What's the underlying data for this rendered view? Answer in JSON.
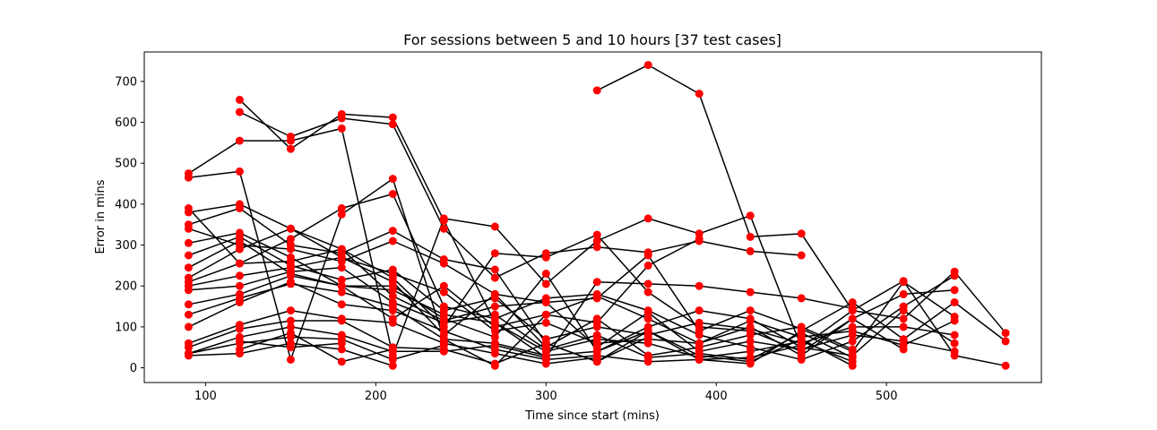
{
  "chart_data": {
    "type": "line",
    "title": "For sessions between 5 and 10 hours [37 test cases]",
    "xlabel": "Time since start (mins)",
    "ylabel": "Error in mins",
    "xlim": [
      64,
      591
    ],
    "ylim": [
      -36,
      772
    ],
    "xticks": [
      100,
      200,
      300,
      400,
      500
    ],
    "yticks": [
      0,
      100,
      200,
      300,
      400,
      500,
      600,
      700
    ],
    "grid": false,
    "line_color": "#000000",
    "marker_color": "#ff0000",
    "series": [
      {
        "x": [
          330,
          360,
          390,
          420,
          450,
          480,
          510,
          540,
          570
        ],
        "y": [
          678,
          740,
          670,
          320,
          328,
          140,
          212,
          30,
          5
        ]
      },
      {
        "x": [
          90,
          120,
          150,
          180,
          210,
          240,
          270,
          300,
          330,
          360,
          390,
          420,
          450,
          480,
          510,
          540,
          570
        ],
        "y": [
          475,
          555,
          555,
          585,
          30,
          365,
          345,
          205,
          310,
          365,
          328,
          372,
          50,
          140,
          120,
          235,
          85
        ]
      },
      {
        "x": [
          120,
          150,
          180,
          210,
          240,
          270,
          300,
          330,
          360,
          390,
          420,
          450
        ],
        "y": [
          625,
          565,
          610,
          595,
          340,
          220,
          280,
          295,
          282,
          310,
          285,
          275
        ]
      },
      {
        "x": [
          120,
          150,
          180,
          210,
          240,
          270,
          300,
          330,
          360,
          390,
          420,
          450,
          480
        ],
        "y": [
          655,
          535,
          620,
          612,
          360,
          110,
          25,
          210,
          205,
          200,
          185,
          170,
          145
        ]
      },
      {
        "x": [
          90,
          120,
          150,
          180,
          210,
          240,
          270,
          300,
          330,
          360,
          390
        ],
        "y": [
          465,
          480,
          20,
          375,
          462,
          70,
          5,
          130,
          110,
          250,
          315
        ]
      },
      {
        "x": [
          90,
          120,
          150,
          180,
          210,
          240,
          270,
          300,
          330,
          360,
          390,
          420,
          450,
          480,
          510,
          540
        ],
        "y": [
          390,
          255,
          315,
          390,
          425,
          150,
          120,
          170,
          180,
          140,
          80,
          50,
          20,
          65,
          150,
          225
        ]
      },
      {
        "x": [
          90,
          120,
          150,
          180,
          210,
          240,
          270,
          300,
          330,
          360,
          390,
          420,
          450,
          480,
          510,
          540
        ],
        "y": [
          380,
          400,
          340,
          290,
          220,
          100,
          280,
          270,
          325,
          185,
          100,
          90,
          40,
          120,
          180,
          190
        ]
      },
      {
        "x": [
          90,
          120,
          150,
          180,
          210,
          240,
          270,
          300,
          330,
          360,
          390,
          420,
          450,
          480,
          510,
          540,
          570
        ],
        "y": [
          350,
          390,
          300,
          280,
          335,
          265,
          240,
          60,
          15,
          90,
          20,
          10,
          90,
          160,
          70,
          160,
          65
        ]
      },
      {
        "x": [
          90,
          120,
          150,
          180,
          210,
          240,
          270,
          300,
          330,
          360,
          390,
          420,
          450,
          480,
          510,
          540
        ],
        "y": [
          340,
          300,
          290,
          260,
          310,
          255,
          180,
          160,
          170,
          275,
          90,
          140,
          95,
          40,
          210,
          125
        ]
      },
      {
        "x": [
          90,
          120,
          150,
          180,
          210,
          240,
          270,
          300,
          330,
          360,
          390,
          420,
          450,
          480,
          510,
          540
        ],
        "y": [
          305,
          330,
          270,
          200,
          120,
          200,
          100,
          130,
          175,
          120,
          60,
          115,
          75,
          90,
          55,
          115
        ]
      },
      {
        "x": [
          90,
          120,
          150,
          180,
          210,
          240,
          270,
          300,
          330,
          360,
          390,
          420,
          450,
          480,
          510,
          540
        ],
        "y": [
          275,
          320,
          250,
          215,
          240,
          140,
          170,
          70,
          100,
          80,
          110,
          95,
          60,
          100,
          100,
          80
        ]
      },
      {
        "x": [
          90,
          120,
          150,
          180,
          210,
          240,
          270,
          300,
          330,
          360,
          390,
          420,
          450,
          480,
          510,
          540
        ],
        "y": [
          245,
          310,
          230,
          200,
          200,
          120,
          75,
          230,
          40,
          100,
          140,
          120,
          50,
          30,
          140,
          60
        ]
      },
      {
        "x": [
          90,
          120,
          150,
          180,
          210,
          240,
          270,
          300,
          330,
          360,
          390,
          420,
          450,
          480,
          510
        ],
        "y": [
          220,
          290,
          340,
          270,
          230,
          185,
          90,
          110,
          60,
          70,
          60,
          100,
          30,
          120,
          45
        ]
      },
      {
        "x": [
          90,
          120,
          150,
          180,
          210,
          240,
          270,
          300,
          330,
          360,
          390,
          420,
          450,
          480,
          510,
          540
        ],
        "y": [
          210,
          255,
          260,
          290,
          175,
          115,
          150,
          160,
          50,
          135,
          40,
          65,
          45,
          80,
          65,
          40
        ]
      },
      {
        "x": [
          90,
          120,
          150,
          180,
          210,
          240,
          270,
          300,
          330,
          360,
          390,
          420,
          450,
          480
        ],
        "y": [
          200,
          225,
          245,
          270,
          210,
          80,
          180,
          50,
          120,
          30,
          50,
          80,
          100,
          45
        ]
      },
      {
        "x": [
          90,
          120,
          150,
          180,
          210,
          240,
          270,
          300,
          330,
          360,
          390,
          420,
          450,
          480
        ],
        "y": [
          190,
          200,
          235,
          245,
          160,
          110,
          130,
          45,
          80,
          25,
          35,
          20,
          85,
          25
        ]
      },
      {
        "x": [
          90,
          120,
          150,
          180,
          210,
          240,
          270,
          300,
          330,
          360,
          390,
          420,
          450,
          480
        ],
        "y": [
          155,
          180,
          225,
          200,
          190,
          130,
          110,
          40,
          70,
          60,
          25,
          40,
          65,
          15
        ]
      },
      {
        "x": [
          90,
          120,
          150,
          180,
          210,
          240,
          270,
          300,
          330,
          360,
          390,
          420,
          450,
          480
        ],
        "y": [
          130,
          170,
          205,
          185,
          150,
          70,
          60,
          30,
          40,
          90,
          30,
          15,
          70,
          5
        ]
      },
      {
        "x": [
          90,
          120,
          150,
          180,
          210,
          240,
          270,
          300,
          330,
          360,
          390,
          420,
          450
        ],
        "y": [
          100,
          160,
          210,
          155,
          140,
          90,
          45,
          20,
          30,
          15,
          20,
          25,
          55
        ]
      },
      {
        "x": [
          90,
          120,
          150,
          180,
          210,
          240,
          270,
          300,
          330
        ],
        "y": [
          60,
          105,
          140,
          120,
          110,
          60,
          35,
          10,
          25
        ]
      },
      {
        "x": [
          90,
          120,
          150,
          180,
          210,
          240,
          270,
          300,
          330,
          360
        ],
        "y": [
          50,
          95,
          115,
          115,
          50,
          45,
          10,
          60,
          15,
          75
        ]
      },
      {
        "x": [
          90,
          120,
          150,
          180,
          210,
          240,
          270,
          300
        ],
        "y": [
          35,
          75,
          100,
          80,
          40,
          40,
          55,
          25
        ]
      },
      {
        "x": [
          90,
          120,
          150,
          180,
          210,
          240
        ],
        "y": [
          35,
          60,
          75,
          70,
          20,
          55
        ]
      },
      {
        "x": [
          90,
          120,
          150,
          180,
          210
        ],
        "y": [
          30,
          35,
          60,
          45,
          5
        ]
      },
      {
        "x": [
          120,
          150,
          180,
          210
        ],
        "y": [
          45,
          85,
          15,
          45
        ]
      },
      {
        "x": [
          120,
          150,
          180
        ],
        "y": [
          65,
          50,
          60
        ]
      }
    ]
  }
}
